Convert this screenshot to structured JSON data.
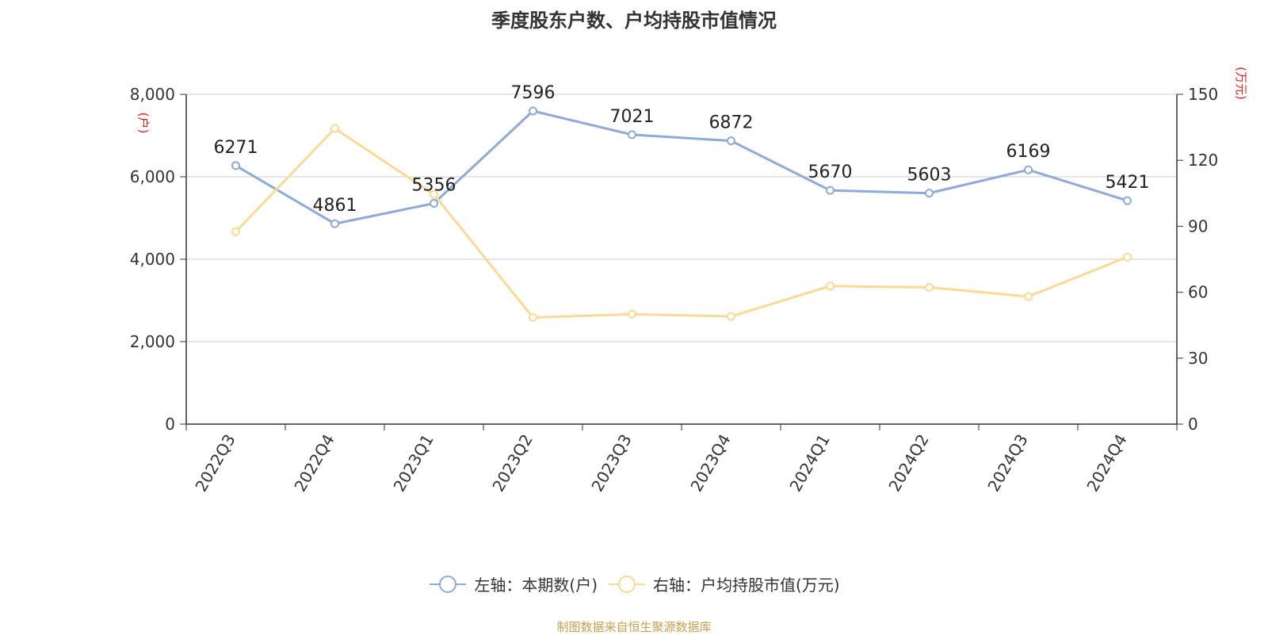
{
  "chart_data": {
    "type": "line",
    "title": "季度股东户数、户均持股市值情况",
    "categories": [
      "2022Q3",
      "2022Q4",
      "2023Q1",
      "2023Q2",
      "2023Q3",
      "2023Q4",
      "2024Q1",
      "2024Q2",
      "2024Q3",
      "2024Q4"
    ],
    "y_left": {
      "label": "(户)",
      "range": [
        0,
        8000
      ],
      "ticks": [
        "0",
        "2,000",
        "4,000",
        "6,000",
        "8,000"
      ],
      "tick_values": [
        0,
        2000,
        4000,
        6000,
        8000
      ]
    },
    "y_right": {
      "label": "(万元)",
      "range": [
        0,
        150
      ],
      "ticks": [
        "0",
        "30",
        "60",
        "90",
        "120",
        "150"
      ],
      "tick_values": [
        0,
        30,
        60,
        90,
        120,
        150
      ]
    },
    "series": [
      {
        "name": "左轴：本期数(户)",
        "axis": "left",
        "color": "#8eaad8",
        "values": [
          6271,
          4861,
          5356,
          7596,
          7021,
          6872,
          5670,
          5603,
          6169,
          5421
        ],
        "data_labels": [
          "6271",
          "4861",
          "5356",
          "7596",
          "7021",
          "6872",
          "5670",
          "5603",
          "6169",
          "5421"
        ]
      },
      {
        "name": "右轴：户均持股市值(万元)",
        "axis": "right",
        "color": "#fcd996",
        "values": [
          87.5,
          134.5,
          104.5,
          48.5,
          50.0,
          49.0,
          62.8,
          62.2,
          58.0,
          76.0
        ]
      }
    ],
    "grid": true,
    "legend_position": "bottom-center"
  },
  "source_note": "制图数据来自恒生聚源数据库"
}
